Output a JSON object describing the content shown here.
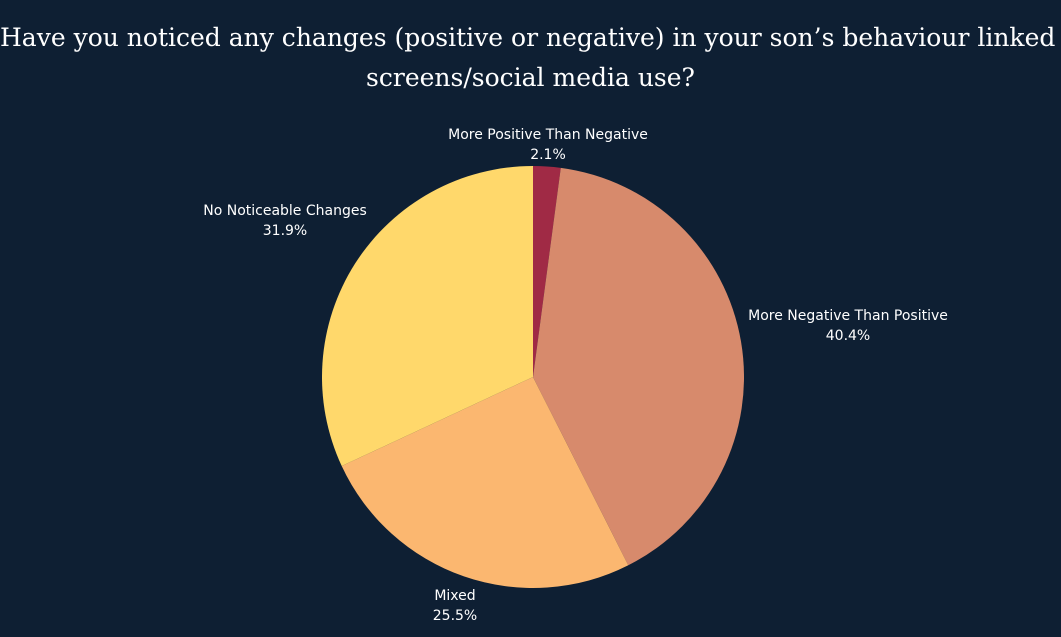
{
  "title_lines": [
    "Have you noticed any changes (positive or negative) in your son’s behaviour linked to",
    "screens/social media use?"
  ],
  "chart_data": {
    "type": "pie",
    "title": "Have you noticed any changes (positive or negative) in your son’s behaviour linked to screens/social media use?",
    "slices": [
      {
        "label": "More Positive Than Negative",
        "value": 2.1,
        "display": "2.1%",
        "color": "#a02a45"
      },
      {
        "label": "More Negative Than Positive",
        "value": 40.4,
        "display": "40.4%",
        "color": "#d78a6c"
      },
      {
        "label": "Mixed",
        "value": 25.5,
        "display": "25.5%",
        "color": "#fbb770"
      },
      {
        "label": "No Noticeable Changes",
        "value": 31.9,
        "display": "31.9%",
        "color": "#ffd86b"
      }
    ],
    "start": "12 o'clock",
    "direction": "clockwise",
    "labels": "outside, name with percentage below",
    "legend": "none"
  },
  "colors": {
    "background": "#0e1f33",
    "text": "#ffffff"
  }
}
